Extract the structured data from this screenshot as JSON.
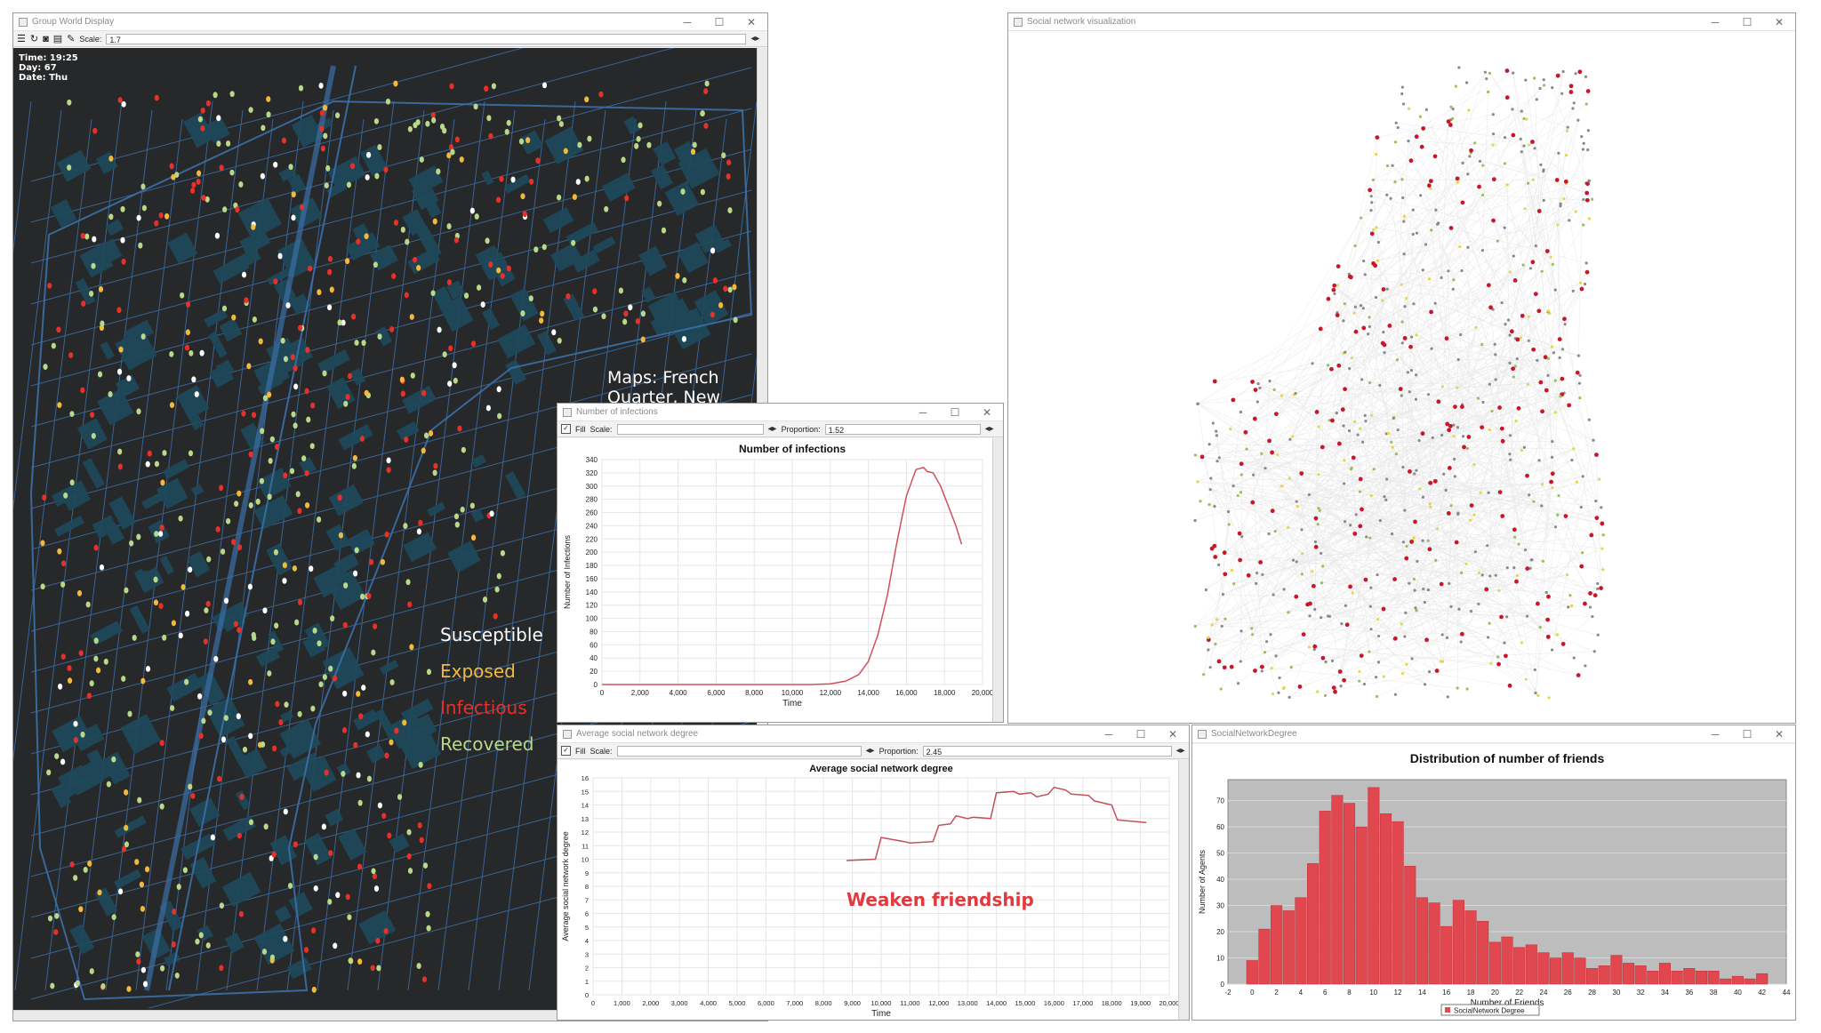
{
  "map_window": {
    "title": "Group World Display",
    "scale_label": "Scale:",
    "scale_value": "1.7",
    "time": "Time: 19:25",
    "day": "Day: 67",
    "date": "Date: Thu",
    "caption": "Maps: French Quarter, New Orleans, LA",
    "legend": [
      {
        "label": "Susceptible",
        "color": "#ffffff"
      },
      {
        "label": "Exposed",
        "color": "#f2b93b"
      },
      {
        "label": "Infectious",
        "color": "#e8302a"
      },
      {
        "label": "Recovered",
        "color": "#b9d88a"
      }
    ],
    "colors": {
      "background": "#262829",
      "streets": "#3b6fa8",
      "buildings": "#1e4a5c"
    }
  },
  "network_window": {
    "title": "Social network visualization",
    "colors": {
      "edges": "#d6d6d6",
      "node_gray": "#8a8a8a",
      "node_red": "#c8162a",
      "node_yellow": "#e7d54a",
      "node_green": "#9abf5a"
    }
  },
  "infections_window": {
    "title": "Number of infections",
    "fill_label": "Fill",
    "scale_label": "Scale:",
    "proportion_label": "Proportion:",
    "proportion_value": "1.52",
    "chart_data": {
      "type": "line",
      "title": "Number of infections",
      "xlabel": "Time",
      "ylabel": "Number of Infections",
      "xlim": [
        0,
        20000
      ],
      "ylim": [
        0,
        340
      ],
      "xticks": [
        "0",
        "2,000",
        "4,000",
        "6,000",
        "8,000",
        "10,000",
        "12,000",
        "14,000",
        "16,000",
        "18,000",
        "20,000"
      ],
      "yticks": [
        "0",
        "20",
        "40",
        "60",
        "80",
        "100",
        "120",
        "140",
        "160",
        "180",
        "200",
        "220",
        "240",
        "260",
        "280",
        "300",
        "320",
        "340"
      ],
      "color": "#d0505a",
      "x": [
        0,
        11000,
        12000,
        12800,
        13500,
        14000,
        14500,
        15000,
        15500,
        16000,
        16500,
        16900,
        17100,
        17400,
        17800,
        18200,
        18600,
        18900
      ],
      "y": [
        0,
        0,
        1,
        5,
        15,
        35,
        75,
        135,
        215,
        285,
        325,
        328,
        322,
        320,
        300,
        270,
        240,
        212
      ]
    }
  },
  "degree_window": {
    "title": "Average social network degree",
    "fill_label": "Fill",
    "scale_label": "Scale:",
    "proportion_label": "Proportion:",
    "proportion_value": "2.45",
    "annotation": "Weaken friendship",
    "chart_data": {
      "type": "line",
      "title": "Average social network degree",
      "xlabel": "Time",
      "ylabel": "Average social network degree",
      "xlim": [
        0,
        20000
      ],
      "ylim": [
        0,
        16
      ],
      "xticks": [
        "0",
        "1,000",
        "2,000",
        "3,000",
        "4,000",
        "5,000",
        "6,000",
        "7,000",
        "8,000",
        "9,000",
        "10,000",
        "11,000",
        "12,000",
        "13,000",
        "14,000",
        "15,000",
        "16,000",
        "17,000",
        "18,000",
        "19,000",
        "20,000"
      ],
      "yticks": [
        "0",
        "1",
        "2",
        "3",
        "4",
        "5",
        "6",
        "7",
        "8",
        "9",
        "10",
        "11",
        "12",
        "13",
        "14",
        "15",
        "16"
      ],
      "color": "#c0505a",
      "x": [
        8800,
        9800,
        10000,
        10800,
        11000,
        11800,
        12000,
        12400,
        12600,
        13000,
        13200,
        13800,
        14000,
        14600,
        14800,
        15200,
        15400,
        15800,
        16000,
        16400,
        16600,
        17200,
        17400,
        18000,
        18200,
        19200
      ],
      "y": [
        9.9,
        10.0,
        11.6,
        11.3,
        11.2,
        11.3,
        12.5,
        12.6,
        13.2,
        13.0,
        13.1,
        13.0,
        14.9,
        15.0,
        14.8,
        14.9,
        14.6,
        14.8,
        15.3,
        15.1,
        14.8,
        14.7,
        14.3,
        14.0,
        12.9,
        12.7
      ]
    }
  },
  "friends_window": {
    "title": "SocialNetworkDegree",
    "chart_data": {
      "type": "bar",
      "title": "Distribution of number of friends",
      "xlabel": "Number of Friends",
      "ylabel": "Number of Agents",
      "legend": "SocialNetwork Degree",
      "color": "#e0474f",
      "xlim": [
        -2,
        44
      ],
      "ylim": [
        0,
        78
      ],
      "xticks": [
        "-2",
        "0",
        "2",
        "4",
        "6",
        "8",
        "10",
        "12",
        "14",
        "16",
        "18",
        "20",
        "22",
        "24",
        "26",
        "28",
        "30",
        "32",
        "34",
        "36",
        "38",
        "40",
        "42",
        "44"
      ],
      "yticks": [
        "0",
        "10",
        "20",
        "30",
        "40",
        "50",
        "60",
        "70"
      ],
      "x": [
        0,
        1,
        2,
        3,
        4,
        5,
        6,
        7,
        8,
        9,
        10,
        11,
        12,
        13,
        14,
        15,
        16,
        17,
        18,
        19,
        20,
        21,
        22,
        23,
        24,
        25,
        26,
        27,
        28,
        29,
        30,
        31,
        32,
        33,
        34,
        35,
        36,
        37,
        38,
        39,
        40,
        41,
        42
      ],
      "values": [
        9,
        21,
        30,
        28,
        33,
        46,
        66,
        72,
        69,
        60,
        75,
        65,
        62,
        45,
        33,
        31,
        22,
        32,
        28,
        24,
        16,
        18,
        14,
        15,
        12,
        10,
        12,
        10,
        6,
        7,
        11,
        8,
        7,
        5,
        8,
        5,
        6,
        5,
        5,
        2,
        3,
        2,
        4
      ]
    }
  }
}
